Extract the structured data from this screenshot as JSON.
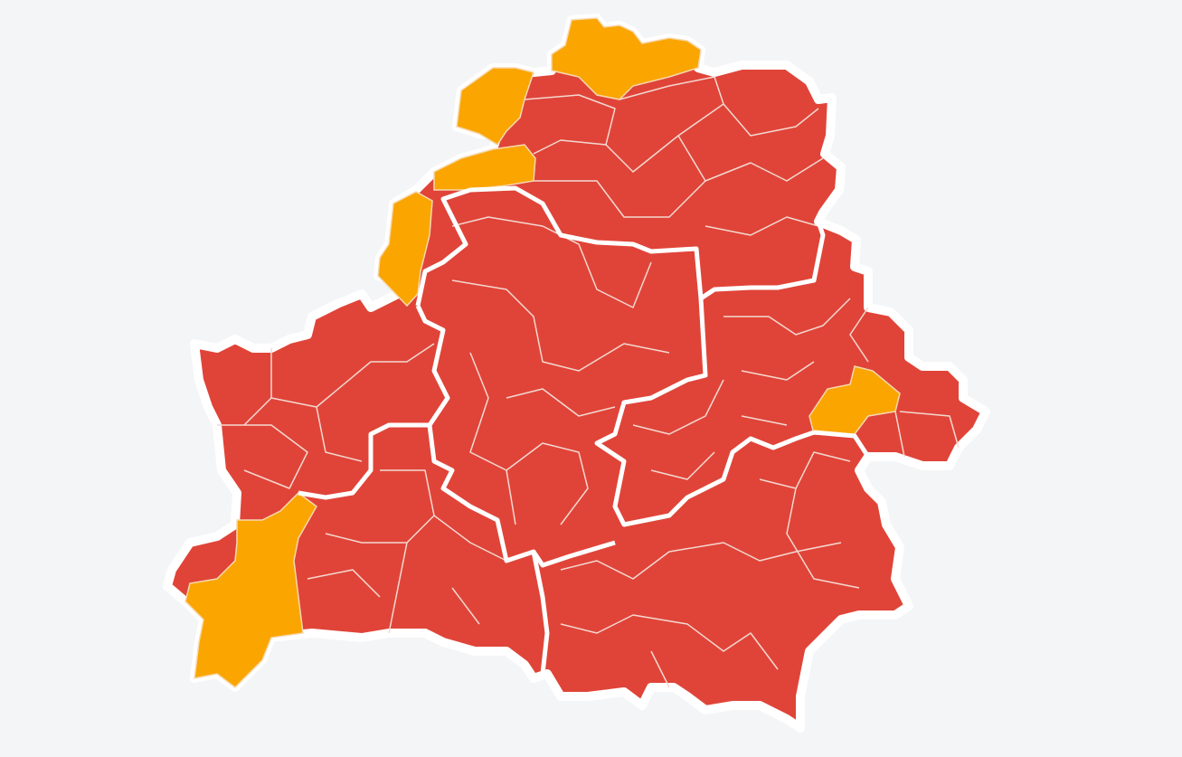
{
  "map": {
    "colors": {
      "background": "#f4f5f7",
      "high": "#e04438",
      "medium": "#fba500",
      "border": "#ffffff"
    }
  }
}
